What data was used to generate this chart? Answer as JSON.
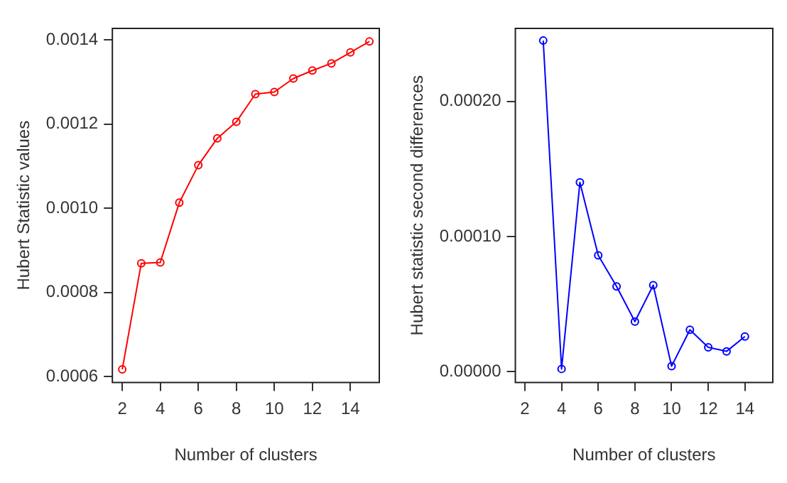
{
  "chart_data": [
    {
      "type": "line",
      "xlabel": "Number of clusters",
      "ylabel": "Hubert Statistic values",
      "x": [
        2,
        3,
        4,
        5,
        6,
        7,
        8,
        9,
        10,
        11,
        12,
        13,
        14,
        15
      ],
      "series": [
        {
          "color": "#ff0000",
          "values": [
            0.000617,
            0.000869,
            0.000871,
            0.001013,
            0.001102,
            0.001166,
            0.001205,
            0.001271,
            0.001276,
            0.001308,
            0.001327,
            0.001344,
            0.00137,
            0.001396
          ]
        }
      ],
      "xlim": [
        1.48,
        15.52
      ],
      "xticks": [
        2,
        4,
        6,
        8,
        10,
        12,
        14
      ],
      "ylim": [
        0.000586,
        0.001427
      ],
      "yticks": [
        {
          "value": 0.0006,
          "label": "0.0006"
        },
        {
          "value": 0.0008,
          "label": "0.0008"
        },
        {
          "value": 0.001,
          "label": "0.0010"
        },
        {
          "value": 0.0012,
          "label": "0.0012"
        },
        {
          "value": 0.0014,
          "label": "0.0014"
        }
      ],
      "marker": "circle",
      "grid": false,
      "legend": false
    },
    {
      "type": "line",
      "xlabel": "Number of clusters",
      "ylabel": "Hubert statistic second differences",
      "x": [
        3,
        4,
        5,
        6,
        7,
        8,
        9,
        10,
        11,
        12,
        13,
        14
      ],
      "series": [
        {
          "color": "#0000ff",
          "values": [
            0.000245,
            2e-06,
            0.00014,
            8.6e-05,
            6.3e-05,
            3.7e-05,
            6.4e-05,
            4e-06,
            3.1e-05,
            1.8e-05,
            1.5e-05,
            2.6e-05
          ]
        }
      ],
      "xlim": [
        1.48,
        15.52
      ],
      "xticks": [
        2,
        4,
        6,
        8,
        10,
        12,
        14
      ],
      "ylim": [
        -8e-06,
        0.000254
      ],
      "yticks": [
        {
          "value": 0,
          "label": "0.00000"
        },
        {
          "value": 0.0001,
          "label": "0.00010"
        },
        {
          "value": 0.0002,
          "label": "0.00020"
        }
      ],
      "marker": "circle",
      "grid": false,
      "legend": false
    }
  ]
}
